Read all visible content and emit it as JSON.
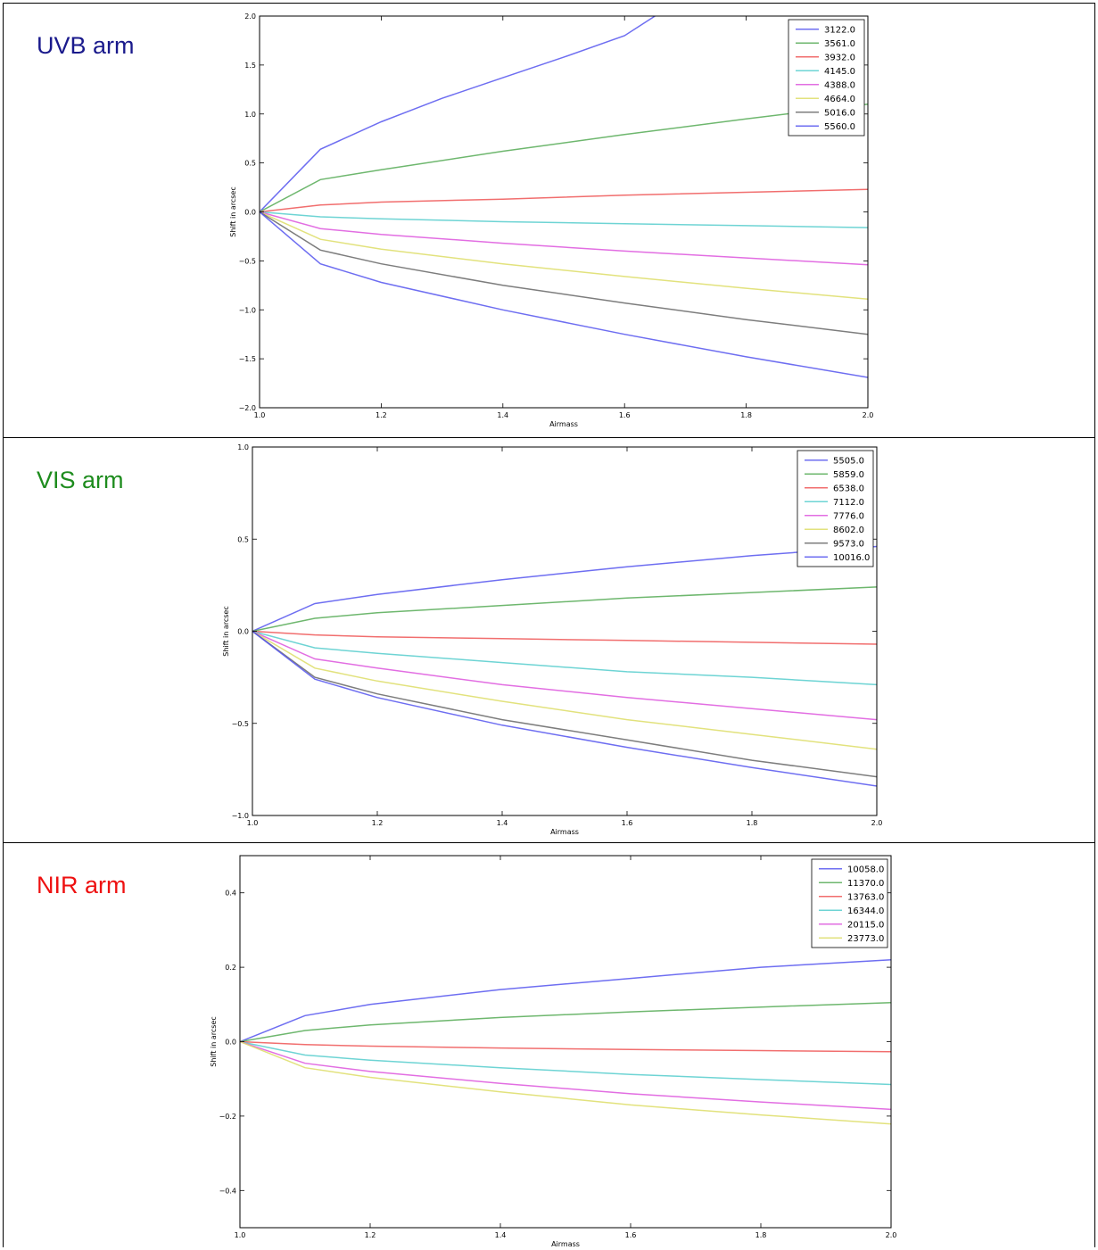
{
  "chart_data": [
    {
      "type": "line",
      "panel_label": "UVB arm",
      "panel_label_color": "#1a1a8c",
      "xlabel": "Airmass",
      "ylabel": "Shift in arcsec",
      "xlim": [
        1.0,
        2.0
      ],
      "ylim": [
        -2.0,
        2.0
      ],
      "xticks": [
        "1.0",
        "1.2",
        "1.4",
        "1.6",
        "1.8",
        "2.0"
      ],
      "yticks": [
        "-2.0",
        "-1.5",
        "-1.0",
        "-0.5",
        "0.0",
        "0.5",
        "1.0",
        "1.5",
        "2.0"
      ],
      "grid": false,
      "legend_position": "top-right",
      "series": [
        {
          "name": "3122.0",
          "color": "#5555ee",
          "x": [
            1.0,
            1.1,
            1.2,
            1.3,
            1.4,
            1.5,
            1.6,
            1.65
          ],
          "y": [
            0.0,
            0.64,
            0.92,
            1.16,
            1.37,
            1.58,
            1.8,
            2.0
          ]
        },
        {
          "name": "3561.0",
          "color": "#55aa55",
          "x": [
            1.0,
            1.1,
            1.2,
            1.4,
            1.6,
            1.8,
            2.0
          ],
          "y": [
            0.0,
            0.33,
            0.43,
            0.62,
            0.79,
            0.95,
            1.1
          ]
        },
        {
          "name": "3932.0",
          "color": "#ee5555",
          "x": [
            1.0,
            1.1,
            1.2,
            1.4,
            1.6,
            1.8,
            2.0
          ],
          "y": [
            0.0,
            0.07,
            0.1,
            0.13,
            0.17,
            0.2,
            0.23
          ]
        },
        {
          "name": "4145.0",
          "color": "#55cccc",
          "x": [
            1.0,
            1.1,
            1.2,
            1.4,
            1.6,
            1.8,
            2.0
          ],
          "y": [
            0.0,
            -0.05,
            -0.07,
            -0.1,
            -0.12,
            -0.14,
            -0.16
          ]
        },
        {
          "name": "4388.0",
          "color": "#dd55dd",
          "x": [
            1.0,
            1.1,
            1.2,
            1.4,
            1.6,
            1.8,
            2.0
          ],
          "y": [
            0.0,
            -0.17,
            -0.23,
            -0.32,
            -0.4,
            -0.47,
            -0.54
          ]
        },
        {
          "name": "4664.0",
          "color": "#dddd66",
          "x": [
            1.0,
            1.1,
            1.2,
            1.4,
            1.6,
            1.8,
            2.0
          ],
          "y": [
            0.0,
            -0.28,
            -0.38,
            -0.53,
            -0.66,
            -0.78,
            -0.89
          ]
        },
        {
          "name": "5016.0",
          "color": "#666666",
          "x": [
            1.0,
            1.1,
            1.2,
            1.4,
            1.6,
            1.8,
            2.0
          ],
          "y": [
            0.0,
            -0.39,
            -0.53,
            -0.75,
            -0.93,
            -1.1,
            -1.25
          ]
        },
        {
          "name": "5560.0",
          "color": "#5555ee",
          "x": [
            1.0,
            1.1,
            1.2,
            1.4,
            1.6,
            1.8,
            2.0
          ],
          "y": [
            0.0,
            -0.53,
            -0.72,
            -1.0,
            -1.25,
            -1.48,
            -1.69
          ]
        }
      ]
    },
    {
      "type": "line",
      "panel_label": "VIS arm",
      "panel_label_color": "#1e8c1e",
      "xlabel": "Airmass",
      "ylabel": "Shift in arcsec",
      "xlim": [
        1.0,
        2.0
      ],
      "ylim": [
        -1.0,
        1.0
      ],
      "xticks": [
        "1.0",
        "1.2",
        "1.4",
        "1.6",
        "1.8",
        "2.0"
      ],
      "yticks": [
        "-1.0",
        "-0.5",
        "0.0",
        "0.5",
        "1.0"
      ],
      "grid": false,
      "legend_position": "top-right",
      "series": [
        {
          "name": "5505.0",
          "color": "#5555ee",
          "x": [
            1.0,
            1.1,
            1.2,
            1.4,
            1.6,
            1.8,
            2.0
          ],
          "y": [
            0.0,
            0.15,
            0.2,
            0.28,
            0.35,
            0.41,
            0.46
          ]
        },
        {
          "name": "5859.0",
          "color": "#55aa55",
          "x": [
            1.0,
            1.1,
            1.2,
            1.4,
            1.6,
            1.8,
            2.0
          ],
          "y": [
            0.0,
            0.07,
            0.1,
            0.14,
            0.18,
            0.21,
            0.24
          ]
        },
        {
          "name": "6538.0",
          "color": "#ee5555",
          "x": [
            1.0,
            1.1,
            1.2,
            1.4,
            1.6,
            1.8,
            2.0
          ],
          "y": [
            0.0,
            -0.02,
            -0.03,
            -0.04,
            -0.05,
            -0.06,
            -0.07
          ]
        },
        {
          "name": "7112.0",
          "color": "#55cccc",
          "x": [
            1.0,
            1.1,
            1.2,
            1.4,
            1.6,
            1.8,
            2.0
          ],
          "y": [
            0.0,
            -0.09,
            -0.12,
            -0.17,
            -0.22,
            -0.25,
            -0.29
          ]
        },
        {
          "name": "7776.0",
          "color": "#dd55dd",
          "x": [
            1.0,
            1.1,
            1.2,
            1.4,
            1.6,
            1.8,
            2.0
          ],
          "y": [
            0.0,
            -0.15,
            -0.2,
            -0.29,
            -0.36,
            -0.42,
            -0.48
          ]
        },
        {
          "name": "8602.0",
          "color": "#dddd66",
          "x": [
            1.0,
            1.1,
            1.2,
            1.4,
            1.6,
            1.8,
            2.0
          ],
          "y": [
            0.0,
            -0.2,
            -0.27,
            -0.38,
            -0.48,
            -0.56,
            -0.64
          ]
        },
        {
          "name": "9573.0",
          "color": "#666666",
          "x": [
            1.0,
            1.1,
            1.2,
            1.4,
            1.6,
            1.8,
            2.0
          ],
          "y": [
            0.0,
            -0.25,
            -0.34,
            -0.48,
            -0.59,
            -0.7,
            -0.79
          ]
        },
        {
          "name": "10016.0",
          "color": "#5555ee",
          "x": [
            1.0,
            1.1,
            1.2,
            1.4,
            1.6,
            1.8,
            2.0
          ],
          "y": [
            0.0,
            -0.26,
            -0.36,
            -0.51,
            -0.63,
            -0.74,
            -0.84
          ]
        }
      ]
    },
    {
      "type": "line",
      "panel_label": "NIR arm",
      "panel_label_color": "#ee1111",
      "xlabel": "Airmass",
      "ylabel": "Shift in arcsec",
      "xlim": [
        1.0,
        2.0
      ],
      "ylim": [
        -0.5,
        0.5
      ],
      "xticks": [
        "1.0",
        "1.2",
        "1.4",
        "1.6",
        "1.8",
        "2.0"
      ],
      "yticks": [
        "-0.4",
        "-0.2",
        "0.0",
        "0.2",
        "0.4"
      ],
      "yticks_values": [
        -0.4,
        -0.2,
        0.0,
        0.2,
        0.4
      ],
      "grid": false,
      "legend_position": "top-right",
      "series": [
        {
          "name": "10058.0",
          "color": "#5555ee",
          "x": [
            1.0,
            1.1,
            1.2,
            1.4,
            1.6,
            1.8,
            2.0
          ],
          "y": [
            0.0,
            0.07,
            0.1,
            0.14,
            0.17,
            0.2,
            0.22
          ]
        },
        {
          "name": "11370.0",
          "color": "#55aa55",
          "x": [
            1.0,
            1.1,
            1.2,
            1.4,
            1.6,
            1.8,
            2.0
          ],
          "y": [
            0.0,
            0.03,
            0.045,
            0.065,
            0.08,
            0.093,
            0.105
          ]
        },
        {
          "name": "13763.0",
          "color": "#ee5555",
          "x": [
            1.0,
            1.1,
            1.2,
            1.4,
            1.6,
            1.8,
            2.0
          ],
          "y": [
            0.0,
            -0.008,
            -0.012,
            -0.017,
            -0.021,
            -0.024,
            -0.027
          ]
        },
        {
          "name": "16344.0",
          "color": "#55cccc",
          "x": [
            1.0,
            1.1,
            1.2,
            1.4,
            1.6,
            1.8,
            2.0
          ],
          "y": [
            0.0,
            -0.036,
            -0.05,
            -0.07,
            -0.088,
            -0.102,
            -0.115
          ]
        },
        {
          "name": "20115.0",
          "color": "#dd55dd",
          "x": [
            1.0,
            1.1,
            1.2,
            1.4,
            1.6,
            1.8,
            2.0
          ],
          "y": [
            0.0,
            -0.058,
            -0.08,
            -0.112,
            -0.14,
            -0.162,
            -0.182
          ]
        },
        {
          "name": "23773.0",
          "color": "#dddd66",
          "x": [
            1.0,
            1.1,
            1.2,
            1.4,
            1.6,
            1.8,
            2.0
          ],
          "y": [
            0.0,
            -0.07,
            -0.096,
            -0.135,
            -0.17,
            -0.197,
            -0.221
          ]
        }
      ]
    }
  ]
}
